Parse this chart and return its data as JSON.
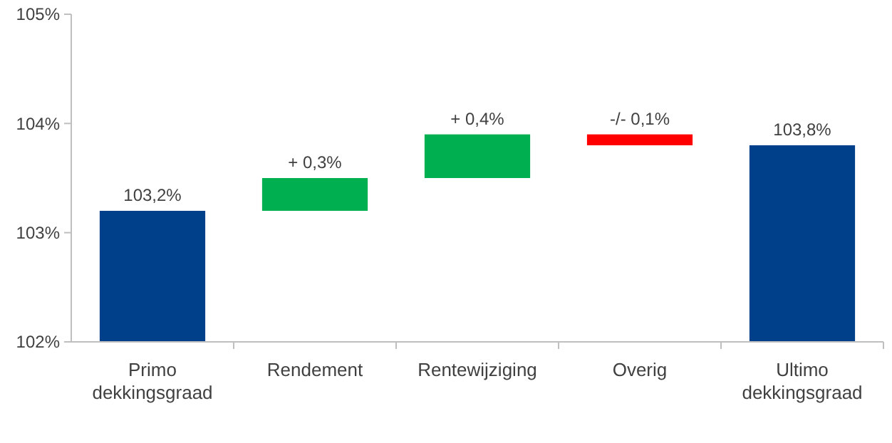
{
  "chart_data": {
    "type": "bar",
    "categories": [
      "Primo\ndekkingsgraad",
      "Rendement",
      "Rentewijziging",
      "Overig",
      "Ultimo\ndekkingsgraad"
    ],
    "values": [
      1.2,
      0.3,
      0.4,
      -0.1,
      1.8
    ],
    "base": [
      102,
      103.2,
      103.5,
      103.9,
      102
    ],
    "colors": [
      "#003f8a",
      "#00b050",
      "#00b050",
      "#ff0000",
      "#003f8a"
    ],
    "value_labels": [
      "103,2%",
      "+ 0,3%",
      "+ 0,4%",
      "-/- 0,1%",
      "103,8%"
    ],
    "ylim": [
      102,
      105
    ],
    "yticks": [
      {
        "value": 102,
        "label": "102%"
      },
      {
        "value": 103,
        "label": "103%"
      },
      {
        "value": 104,
        "label": "104%"
      },
      {
        "value": 105,
        "label": "105%"
      }
    ],
    "grid": false
  }
}
